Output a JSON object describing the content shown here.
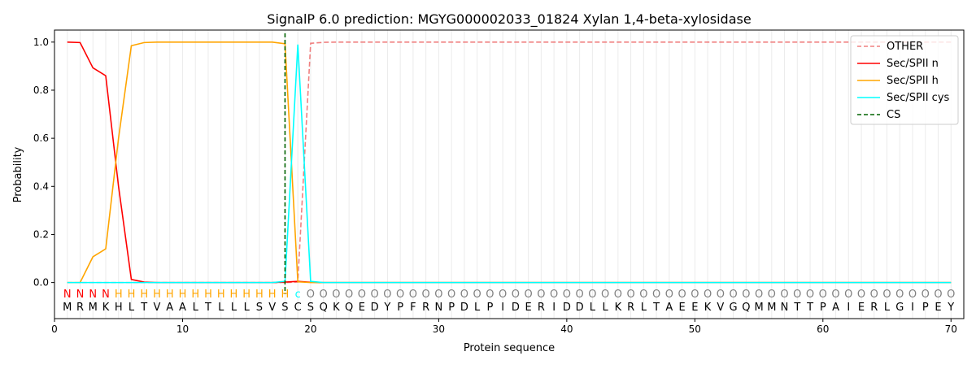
{
  "chart_data": {
    "type": "line",
    "title": "SignalP 6.0 prediction: MGYG000002033_01824 Xylan 1,4-beta-xylosidase",
    "xlabel": "Protein sequence",
    "ylabel": "Probability",
    "xlim": [
      0,
      71
    ],
    "ylim": [
      -0.15,
      1.05
    ],
    "xticks": [
      0,
      10,
      20,
      30,
      40,
      50,
      60,
      70
    ],
    "yticks": [
      0.0,
      0.2,
      0.4,
      0.6,
      0.8,
      1.0
    ],
    "legend_position": "top-right",
    "sequence": "MRMKHLTVAALTLLLSVSCSQKQEDYPFRNPDLPIDERIDDLLKRLTAEEKVGQMMNTTPAIERLGIPEY",
    "labels": "NNNNHHHHHHHHHHHHHHcOOOOOOOOOOOOOOOOOOOOOOOOOOOOOOOOOOOOOOOOOOOOOOOOOOO",
    "label_colors": {
      "N": "#ff0000",
      "H": "#ffa500",
      "c": "#00ffff",
      "O": "#808080"
    },
    "cs_position": 18,
    "cs_label": "CS",
    "cs_color": "#006400",
    "series": [
      {
        "name": "OTHER",
        "color": "#f08080",
        "dash": true,
        "sparse": {
          "19": 0.002,
          "20": 0.995,
          "21": 0.999
        },
        "after": 1.0,
        "before": 0.0
      },
      {
        "name": "Sec/SPII n",
        "color": "#ff0000",
        "values_head": [
          1.0,
          0.998,
          0.893,
          0.86,
          0.4,
          0.013,
          0.002,
          0,
          0,
          0,
          0,
          0,
          0,
          0,
          0,
          0,
          0,
          0.002,
          0.005,
          0.001
        ],
        "rest": 0
      },
      {
        "name": "Sec/SPII h",
        "color": "#ffa500",
        "values_head": [
          0,
          0,
          0.107,
          0.14,
          0.6,
          0.985,
          0.998,
          1.0,
          1.0,
          1.0,
          1.0,
          1.0,
          1.0,
          1.0,
          1.0,
          1.0,
          1.0,
          0.993,
          0.003,
          0
        ],
        "rest": 0
      },
      {
        "name": "Sec/SPII cys",
        "color": "#00ffff",
        "values_head": [
          0,
          0,
          0,
          0,
          0,
          0,
          0,
          0,
          0,
          0,
          0,
          0,
          0,
          0,
          0,
          0,
          0,
          0.005,
          0.99,
          0.005
        ],
        "rest": 0
      }
    ]
  }
}
